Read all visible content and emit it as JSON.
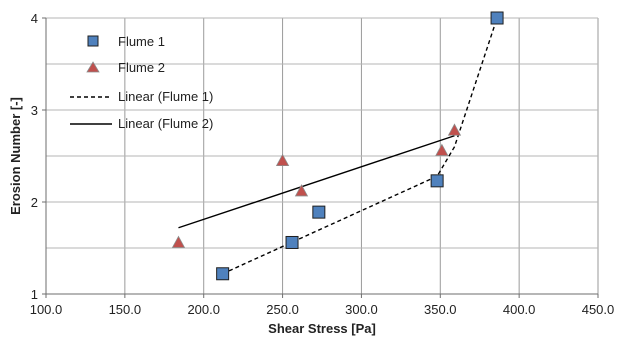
{
  "chart_data": {
    "type": "scatter",
    "xlabel": "Shear Stress [Pa]",
    "ylabel": "Erosion Number [-]",
    "xlim": [
      100,
      450
    ],
    "ylim": [
      1,
      4
    ],
    "x_ticks": [
      100,
      150,
      200,
      250,
      300,
      350,
      400,
      450
    ],
    "x_tick_labels": [
      "100.0",
      "150.0",
      "200.0",
      "250.0",
      "300.0",
      "350.0",
      "400.0",
      "450.0"
    ],
    "y_ticks": [
      1,
      2,
      3,
      4
    ],
    "y_tick_labels": [
      "1",
      "2",
      "3",
      "4"
    ],
    "grid": true,
    "legend_position": "top-left",
    "series": [
      {
        "name": "Flume 1",
        "marker": "square",
        "color": "#4f81bd",
        "edge_color": "#1f1f1f",
        "points": [
          [
            212,
            1.22
          ],
          [
            256,
            1.56
          ],
          [
            273,
            1.89
          ],
          [
            348,
            2.23
          ],
          [
            386,
            4.0
          ]
        ]
      },
      {
        "name": "Flume 2",
        "marker": "triangle",
        "color": "#c0504d",
        "edge_color": "#8c8c8c",
        "points": [
          [
            184,
            1.56
          ],
          [
            250,
            2.45
          ],
          [
            262,
            2.12
          ],
          [
            351,
            2.56
          ],
          [
            359,
            2.78
          ]
        ]
      }
    ],
    "trendlines": [
      {
        "name": "Linear (Flume 1)",
        "style": "dashed",
        "color": "#000000",
        "points": [
          [
            212,
            1.22
          ],
          [
            348,
            2.28
          ],
          [
            359,
            2.6
          ],
          [
            386,
            4.0
          ]
        ]
      },
      {
        "name": "Linear (Flume 2)",
        "style": "solid",
        "color": "#000000",
        "points": [
          [
            184,
            1.72
          ],
          [
            359,
            2.72
          ]
        ]
      }
    ]
  }
}
